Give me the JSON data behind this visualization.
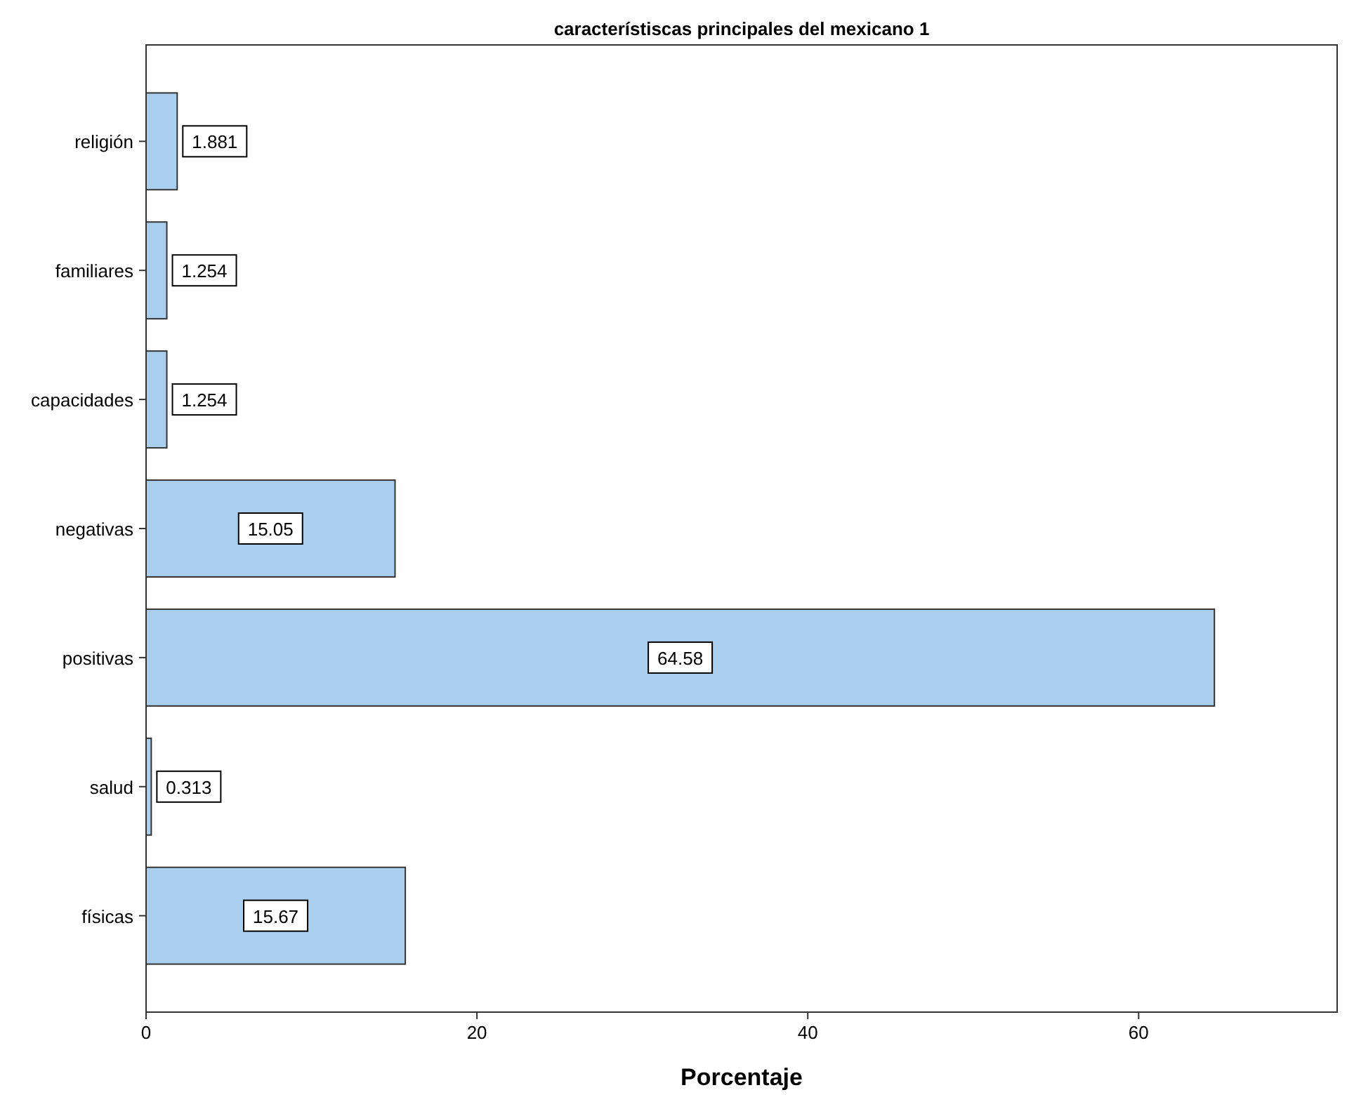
{
  "chart_data": {
    "type": "bar",
    "orientation": "horizontal",
    "title": "característiscas principales del mexicano 1",
    "xlabel": "Porcentaje",
    "categories": [
      "religión",
      "familiares",
      "capacidades",
      "negativas",
      "positivas",
      "salud",
      "físicas"
    ],
    "values": [
      1.881,
      1.254,
      1.254,
      15.05,
      64.58,
      0.313,
      15.67
    ],
    "color": "#aacfee",
    "xlim": [
      0,
      72
    ],
    "xticks": [
      0,
      20,
      40,
      60
    ],
    "data_labels": true,
    "grid": false
  }
}
